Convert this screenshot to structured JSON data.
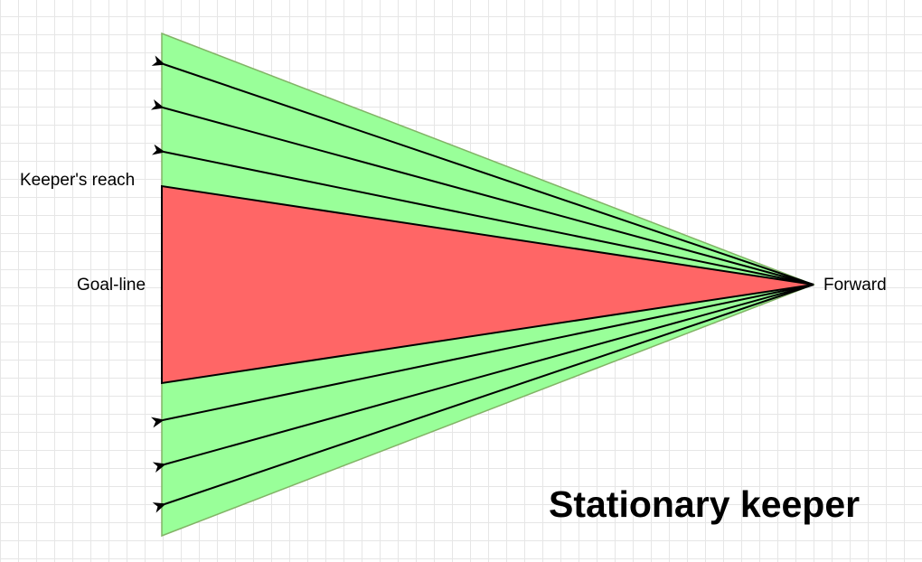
{
  "title": "Stationary keeper",
  "labels": {
    "keepers_reach": "Keeper's reach",
    "goal_line": "Goal-line",
    "forward": "Forward"
  },
  "colors": {
    "reachable_zone": "#ff6666",
    "open_zone": "#99ff99",
    "open_zone_border": "#82b366",
    "arrow": "#000000",
    "grid": "#e6e6e6"
  },
  "shot_arrows": {
    "above_keeper": 3,
    "below_keeper": 3
  }
}
